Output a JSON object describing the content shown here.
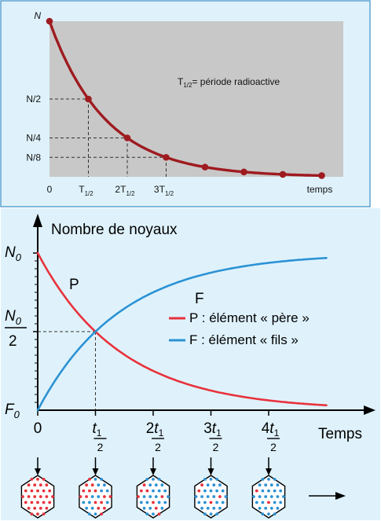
{
  "colors": {
    "panel_bg": "#dff2fb",
    "panel_border": "#3a8ec8",
    "plot_bg": "#c8c8c8",
    "decay_curve": "#9e1b20",
    "father_curve": "#e8323c",
    "son_curve": "#2b92d4",
    "father_nucleus": "#e8323c",
    "son_nucleus": "#2b92d4"
  },
  "chart_data": [
    {
      "type": "line",
      "x_unit_label": "temps",
      "y_top_label": "N",
      "x_ticks": [
        {
          "main": "0",
          "sub": "",
          "value": 0
        },
        {
          "main": "T",
          "sub": "1/2",
          "value": 1
        },
        {
          "main": "2T",
          "sub": "1/2",
          "value": 2
        },
        {
          "main": "3T",
          "sub": "1/2",
          "value": 3
        }
      ],
      "y_ticks": [
        {
          "label": "N/2",
          "value": 0.5
        },
        {
          "label": "N/4",
          "value": 0.25
        },
        {
          "label": "N/8",
          "value": 0.125
        }
      ],
      "annotation": {
        "main": "T",
        "sub": "1/2",
        "rest": "= période radioactive"
      },
      "xlim": [
        0,
        7
      ],
      "ylim": [
        0,
        1
      ],
      "series": [
        {
          "x": [
            0,
            1,
            2,
            3,
            4,
            5,
            6,
            7
          ],
          "y": [
            1,
            0.5,
            0.25,
            0.125,
            0.0625,
            0.03125,
            0.015625,
            0.0078125
          ],
          "markers": true
        }
      ]
    },
    {
      "type": "line",
      "ylabel": "Nombre de noyaux",
      "xlabel": "Temps",
      "y_tick_top": {
        "main": "N",
        "sub": "0"
      },
      "y_tick_half": {
        "num_main": "N",
        "num_sub": "0",
        "den": "2"
      },
      "y_tick_bottom": {
        "main": "F",
        "sub": "0"
      },
      "x_ticks": [
        {
          "coef": "0",
          "value": 0
        },
        {
          "coef": "",
          "var": "t",
          "sub": "1",
          "den": "2",
          "value": 1
        },
        {
          "coef": "2",
          "var": "t",
          "sub": "1",
          "den": "2",
          "value": 2
        },
        {
          "coef": "3",
          "var": "t",
          "sub": "1",
          "den": "2",
          "value": 3
        },
        {
          "coef": "4",
          "var": "t",
          "sub": "1",
          "den": "2",
          "value": 4
        }
      ],
      "xlim": [
        0,
        5.4
      ],
      "ylim": [
        0,
        1
      ],
      "curve_labels": {
        "P": "P",
        "F": "F"
      },
      "legend": [
        {
          "key": "P",
          "text": "P : élément « père »"
        },
        {
          "key": "F",
          "text": "F : élément « fils »"
        }
      ],
      "series": [
        {
          "key": "P",
          "x": [
            0,
            0.5,
            1,
            1.5,
            2,
            2.5,
            3,
            3.5,
            4,
            4.5,
            5
          ],
          "y": [
            1,
            0.707,
            0.5,
            0.354,
            0.25,
            0.177,
            0.125,
            0.088,
            0.0625,
            0.044,
            0.031
          ]
        },
        {
          "key": "F",
          "x": [
            0,
            0.5,
            1,
            1.5,
            2,
            2.5,
            3,
            3.5,
            4,
            4.5,
            5
          ],
          "y": [
            0,
            0.293,
            0.5,
            0.646,
            0.75,
            0.823,
            0.875,
            0.912,
            0.9375,
            0.956,
            0.969
          ]
        }
      ],
      "nuclei_panels": [
        {
          "time": "0",
          "father_fraction": 1
        },
        {
          "time": "t1/2",
          "father_fraction": 0.5
        },
        {
          "time": "2t1/2",
          "father_fraction": 0.25
        },
        {
          "time": "3t1/2",
          "father_fraction": 0.125
        },
        {
          "time": "4t1/2",
          "father_fraction": 0.0625
        }
      ]
    }
  ]
}
